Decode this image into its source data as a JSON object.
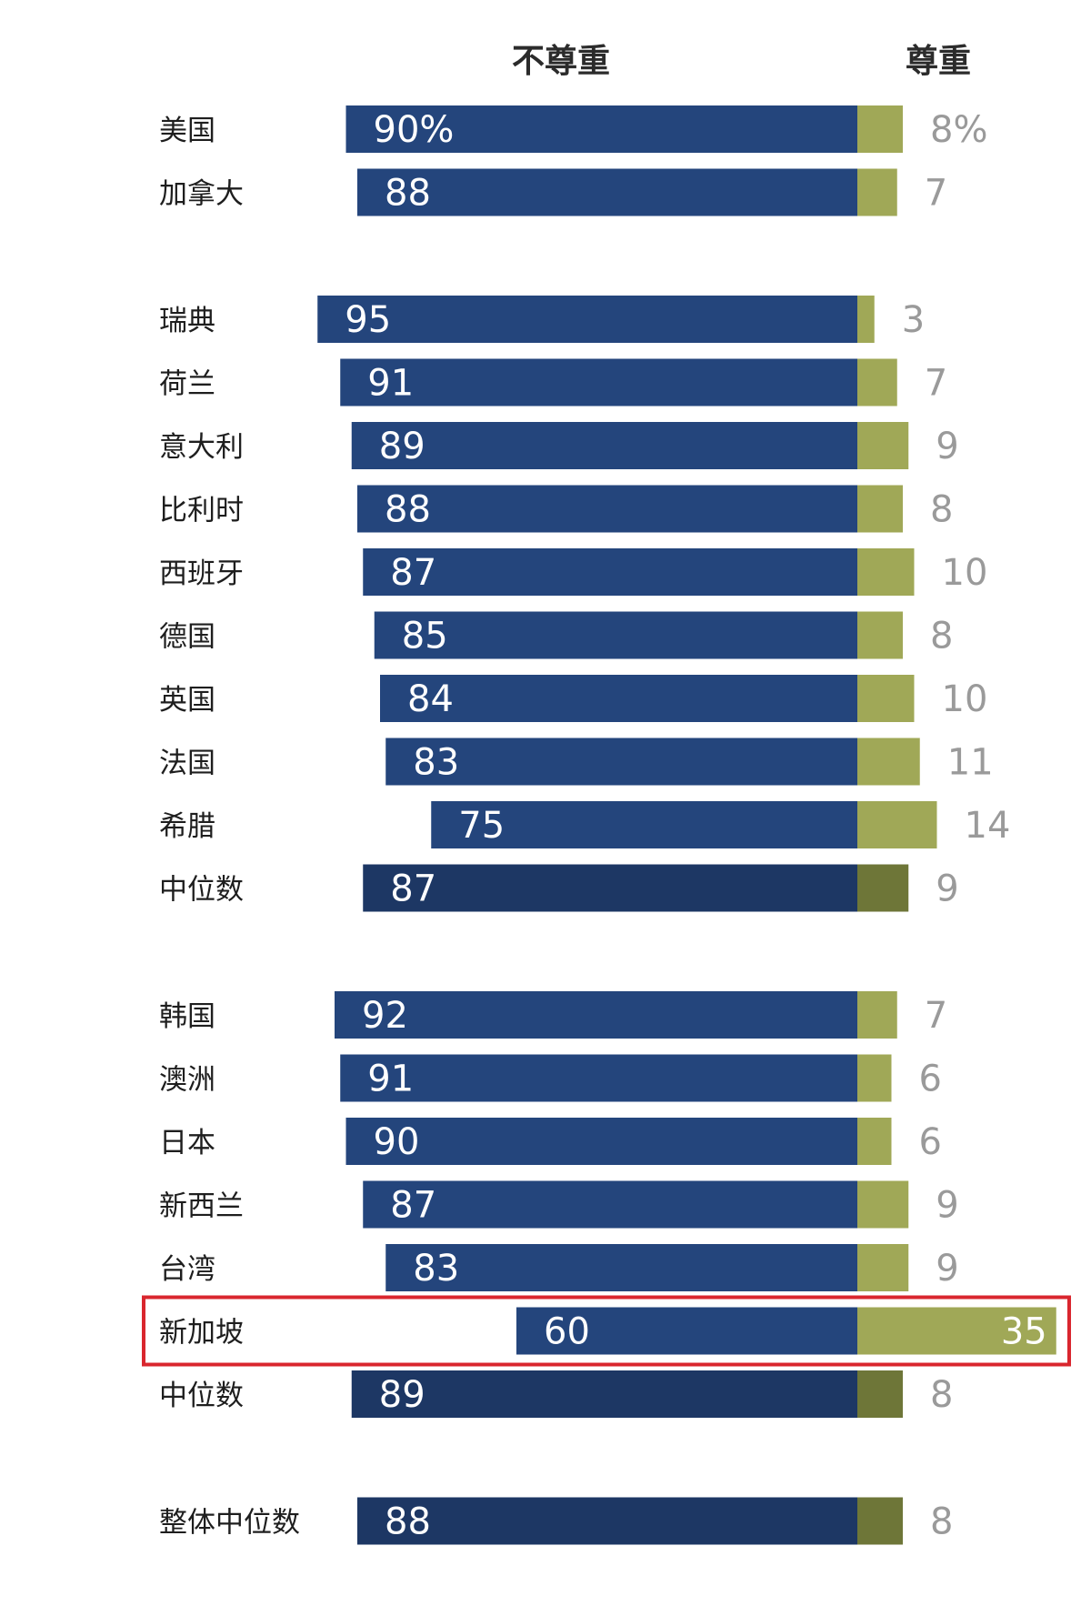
{
  "headers": {
    "disrespect": "不尊重",
    "respect": "尊重"
  },
  "chart_data": {
    "type": "bar",
    "orientation": "horizontal-diverging-stacked",
    "series": [
      {
        "name": "不尊重",
        "color": "#24457c",
        "median_color": "#1d3764"
      },
      {
        "name": "尊重",
        "color": "#a0a857",
        "median_color": "#6e7638"
      }
    ],
    "groups": [
      {
        "rows": [
          {
            "label": "美国",
            "disrespect": 90,
            "respect": 8,
            "disrespect_label": "90%",
            "respect_label": "8%"
          },
          {
            "label": "加拿大",
            "disrespect": 88,
            "respect": 7,
            "disrespect_label": "88",
            "respect_label": "7"
          }
        ]
      },
      {
        "rows": [
          {
            "label": "瑞典",
            "disrespect": 95,
            "respect": 3,
            "disrespect_label": "95",
            "respect_label": "3"
          },
          {
            "label": "荷兰",
            "disrespect": 91,
            "respect": 7,
            "disrespect_label": "91",
            "respect_label": "7"
          },
          {
            "label": "意大利",
            "disrespect": 89,
            "respect": 9,
            "disrespect_label": "89",
            "respect_label": "9"
          },
          {
            "label": "比利时",
            "disrespect": 88,
            "respect": 8,
            "disrespect_label": "88",
            "respect_label": "8"
          },
          {
            "label": "西班牙",
            "disrespect": 87,
            "respect": 10,
            "disrespect_label": "87",
            "respect_label": "10"
          },
          {
            "label": "德国",
            "disrespect": 85,
            "respect": 8,
            "disrespect_label": "85",
            "respect_label": "8"
          },
          {
            "label": "英国",
            "disrespect": 84,
            "respect": 10,
            "disrespect_label": "84",
            "respect_label": "10"
          },
          {
            "label": "法国",
            "disrespect": 83,
            "respect": 11,
            "disrespect_label": "83",
            "respect_label": "11"
          },
          {
            "label": "希腊",
            "disrespect": 75,
            "respect": 14,
            "disrespect_label": "75",
            "respect_label": "14"
          },
          {
            "label": "中位数",
            "disrespect": 87,
            "respect": 9,
            "disrespect_label": "87",
            "respect_label": "9",
            "median": true
          }
        ]
      },
      {
        "rows": [
          {
            "label": "韩国",
            "disrespect": 92,
            "respect": 7,
            "disrespect_label": "92",
            "respect_label": "7"
          },
          {
            "label": "澳洲",
            "disrespect": 91,
            "respect": 6,
            "disrespect_label": "91",
            "respect_label": "6"
          },
          {
            "label": "日本",
            "disrespect": 90,
            "respect": 6,
            "disrespect_label": "90",
            "respect_label": "6"
          },
          {
            "label": "新西兰",
            "disrespect": 87,
            "respect": 9,
            "disrespect_label": "87",
            "respect_label": "9"
          },
          {
            "label": "台湾",
            "disrespect": 83,
            "respect": 9,
            "disrespect_label": "83",
            "respect_label": "9"
          },
          {
            "label": "新加坡",
            "disrespect": 60,
            "respect": 35,
            "disrespect_label": "60",
            "respect_label": "35",
            "highlight": true
          },
          {
            "label": "中位数",
            "disrespect": 89,
            "respect": 8,
            "disrespect_label": "89",
            "respect_label": "8",
            "median": true
          }
        ]
      },
      {
        "rows": [
          {
            "label": "整体中位数",
            "disrespect": 88,
            "respect": 8,
            "disrespect_label": "88",
            "respect_label": "8",
            "median": true
          }
        ]
      }
    ],
    "highlight_color": "#d9262e",
    "value_label_color": "#9a9a9a",
    "xlim": [
      0,
      100
    ],
    "grid": false,
    "legend": "none"
  }
}
